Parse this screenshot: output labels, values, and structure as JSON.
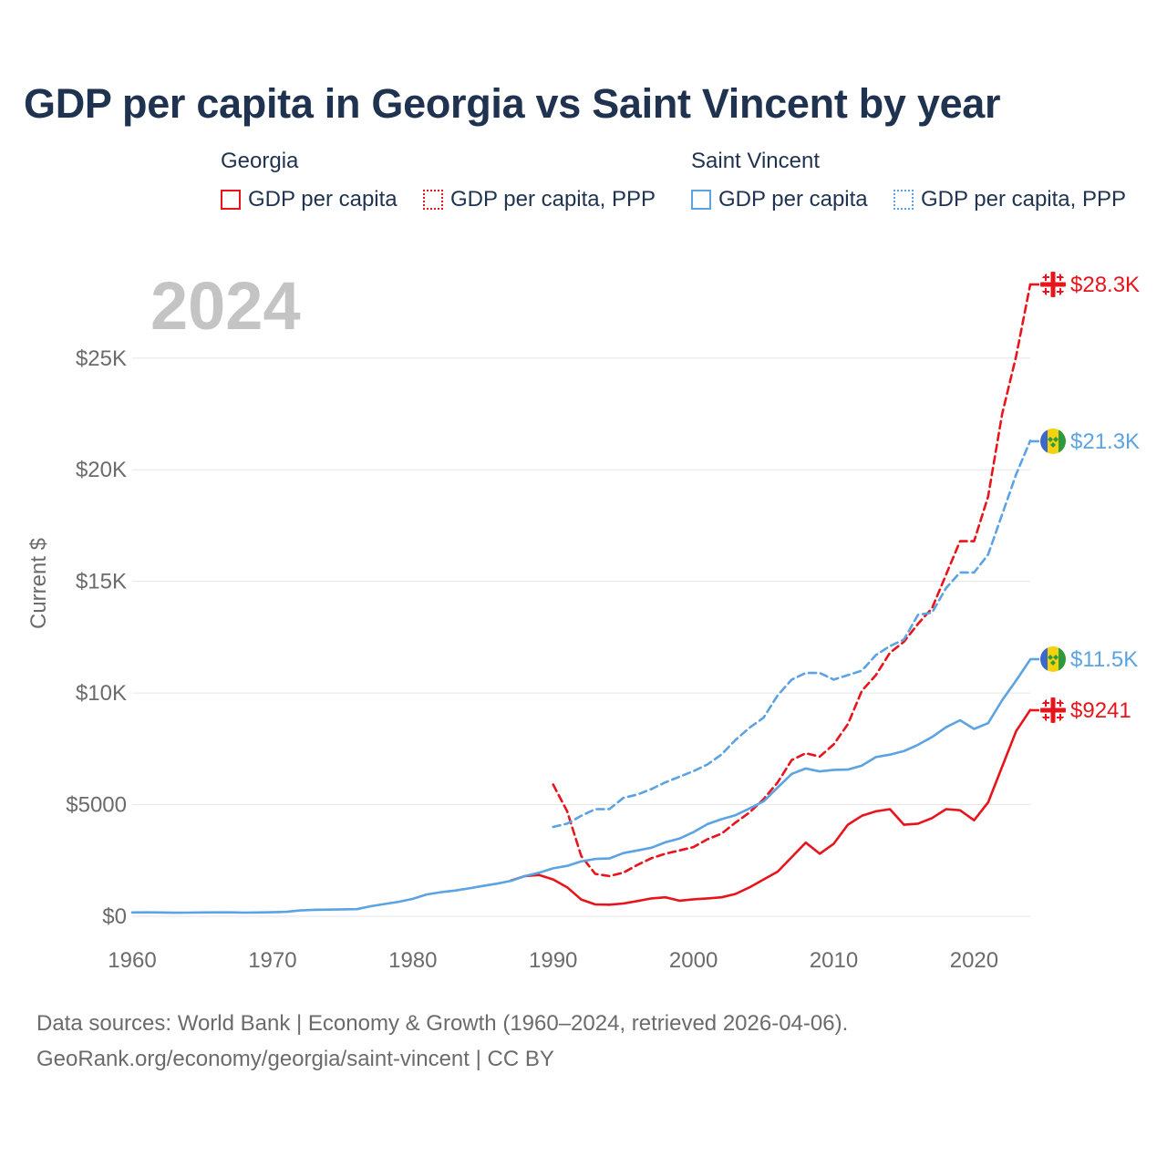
{
  "title": "GDP per capita in Georgia vs Saint Vincent by year",
  "year_label": "2024",
  "legend": {
    "groups": [
      {
        "name": "Georgia",
        "items": [
          "GDP per capita",
          "GDP per capita, PPP"
        ]
      },
      {
        "name": "Saint Vincent",
        "items": [
          "GDP per capita",
          "GDP per capita, PPP"
        ]
      }
    ]
  },
  "footer": {
    "line1": "Data sources: World Bank | Economy & Growth (1960–2024, retrieved 2026-04-06).",
    "line2": "GeoRank.org/economy/georgia/saint-vincent | CC BY"
  },
  "colors": {
    "georgia": "#e8141c",
    "saint_vincent": "#5ba3e3",
    "grid": "#e6e6e6",
    "axis_text": "#6b6b6b"
  },
  "chart_data": {
    "type": "line",
    "title": "GDP per capita in Georgia vs Saint Vincent by year",
    "xlabel": "",
    "ylabel": "Current $",
    "xlim": [
      1960,
      2024
    ],
    "ylim": [
      0,
      28300
    ],
    "y_ticks": [
      0,
      5000,
      10000,
      15000,
      20000,
      25000
    ],
    "y_tick_labels": [
      "$0",
      "$5000",
      "$10K",
      "$15K",
      "$20K",
      "$25K"
    ],
    "x_ticks": [
      1960,
      1970,
      1980,
      1990,
      2000,
      2010,
      2020
    ],
    "x_tick_labels": [
      "1960",
      "1970",
      "1980",
      "1990",
      "2000",
      "2010",
      "2020"
    ],
    "series": [
      {
        "name": "Georgia GDP per capita",
        "country": "Georgia",
        "style": "solid",
        "color": "#e8141c",
        "end_label": "$9241",
        "x": [
          1987,
          1988,
          1989,
          1990,
          1991,
          1992,
          1993,
          1994,
          1995,
          1996,
          1997,
          1998,
          1999,
          2000,
          2001,
          2002,
          2003,
          2004,
          2005,
          2006,
          2007,
          2008,
          2009,
          2010,
          2011,
          2012,
          2013,
          2014,
          2015,
          2016,
          2017,
          2018,
          2019,
          2020,
          2021,
          2022,
          2023,
          2024
        ],
        "y": [
          1600,
          1800,
          1850,
          1650,
          1300,
          750,
          530,
          520,
          570,
          680,
          800,
          850,
          700,
          760,
          800,
          850,
          1000,
          1300,
          1650,
          2000,
          2650,
          3300,
          2800,
          3250,
          4100,
          4500,
          4700,
          4800,
          4100,
          4150,
          4400,
          4800,
          4750,
          4300,
          5100,
          6700,
          8300,
          9241
        ]
      },
      {
        "name": "Georgia GDP per capita, PPP",
        "country": "Georgia",
        "style": "dashed",
        "color": "#e8141c",
        "end_label": "$28.3K",
        "x": [
          1990,
          1991,
          1992,
          1993,
          1994,
          1995,
          1996,
          1997,
          1998,
          1999,
          2000,
          2001,
          2002,
          2003,
          2004,
          2005,
          2006,
          2007,
          2008,
          2009,
          2010,
          2011,
          2012,
          2013,
          2014,
          2015,
          2016,
          2017,
          2018,
          2019,
          2020,
          2021,
          2022,
          2023,
          2024
        ],
        "y": [
          5900,
          4700,
          2700,
          1900,
          1800,
          1950,
          2300,
          2600,
          2800,
          2950,
          3100,
          3450,
          3700,
          4200,
          4650,
          5250,
          6000,
          7000,
          7300,
          7150,
          7700,
          8600,
          10100,
          10800,
          11800,
          12300,
          13100,
          13800,
          15300,
          16800,
          16800,
          18800,
          22500,
          25100,
          28300
        ]
      },
      {
        "name": "Saint Vincent GDP per capita",
        "country": "Saint Vincent",
        "style": "solid",
        "color": "#5ba3e3",
        "end_label": "$11.5K",
        "x": [
          1960,
          1961,
          1962,
          1963,
          1964,
          1965,
          1966,
          1967,
          1968,
          1969,
          1970,
          1971,
          1972,
          1973,
          1974,
          1975,
          1976,
          1977,
          1978,
          1979,
          1980,
          1981,
          1982,
          1983,
          1984,
          1985,
          1986,
          1987,
          1988,
          1989,
          1990,
          1991,
          1992,
          1993,
          1994,
          1995,
          1996,
          1997,
          1998,
          1999,
          2000,
          2001,
          2002,
          2003,
          2004,
          2005,
          2006,
          2007,
          2008,
          2009,
          2010,
          2011,
          2012,
          2013,
          2014,
          2015,
          2016,
          2017,
          2018,
          2019,
          2020,
          2021,
          2022,
          2023,
          2024
        ],
        "y": [
          170,
          175,
          170,
          160,
          165,
          170,
          175,
          175,
          165,
          170,
          180,
          200,
          260,
          290,
          300,
          310,
          320,
          450,
          550,
          650,
          780,
          980,
          1080,
          1150,
          1250,
          1360,
          1460,
          1590,
          1800,
          1950,
          2150,
          2260,
          2460,
          2570,
          2590,
          2830,
          2950,
          3070,
          3310,
          3480,
          3770,
          4130,
          4350,
          4530,
          4830,
          5150,
          5770,
          6380,
          6620,
          6490,
          6560,
          6570,
          6750,
          7130,
          7240,
          7400,
          7680,
          8030,
          8470,
          8780,
          8390,
          8650,
          9680,
          10570,
          11500
        ]
      },
      {
        "name": "Saint Vincent GDP per capita, PPP",
        "country": "Saint Vincent",
        "style": "dashed",
        "color": "#5ba3e3",
        "end_label": "$21.3K",
        "x": [
          1990,
          1991,
          1992,
          1993,
          1994,
          1995,
          1996,
          1997,
          1998,
          1999,
          2000,
          2001,
          2002,
          2003,
          2004,
          2005,
          2006,
          2007,
          2008,
          2009,
          2010,
          2011,
          2012,
          2013,
          2014,
          2015,
          2016,
          2017,
          2018,
          2019,
          2020,
          2021,
          2022,
          2023,
          2024
        ],
        "y": [
          4000,
          4150,
          4500,
          4800,
          4800,
          5300,
          5450,
          5700,
          6000,
          6250,
          6500,
          6800,
          7250,
          7900,
          8450,
          8900,
          9900,
          10600,
          10900,
          10900,
          10600,
          10800,
          11000,
          11700,
          12100,
          12400,
          13500,
          13600,
          14700,
          15400,
          15400,
          16200,
          18000,
          19800,
          21300
        ]
      }
    ]
  }
}
